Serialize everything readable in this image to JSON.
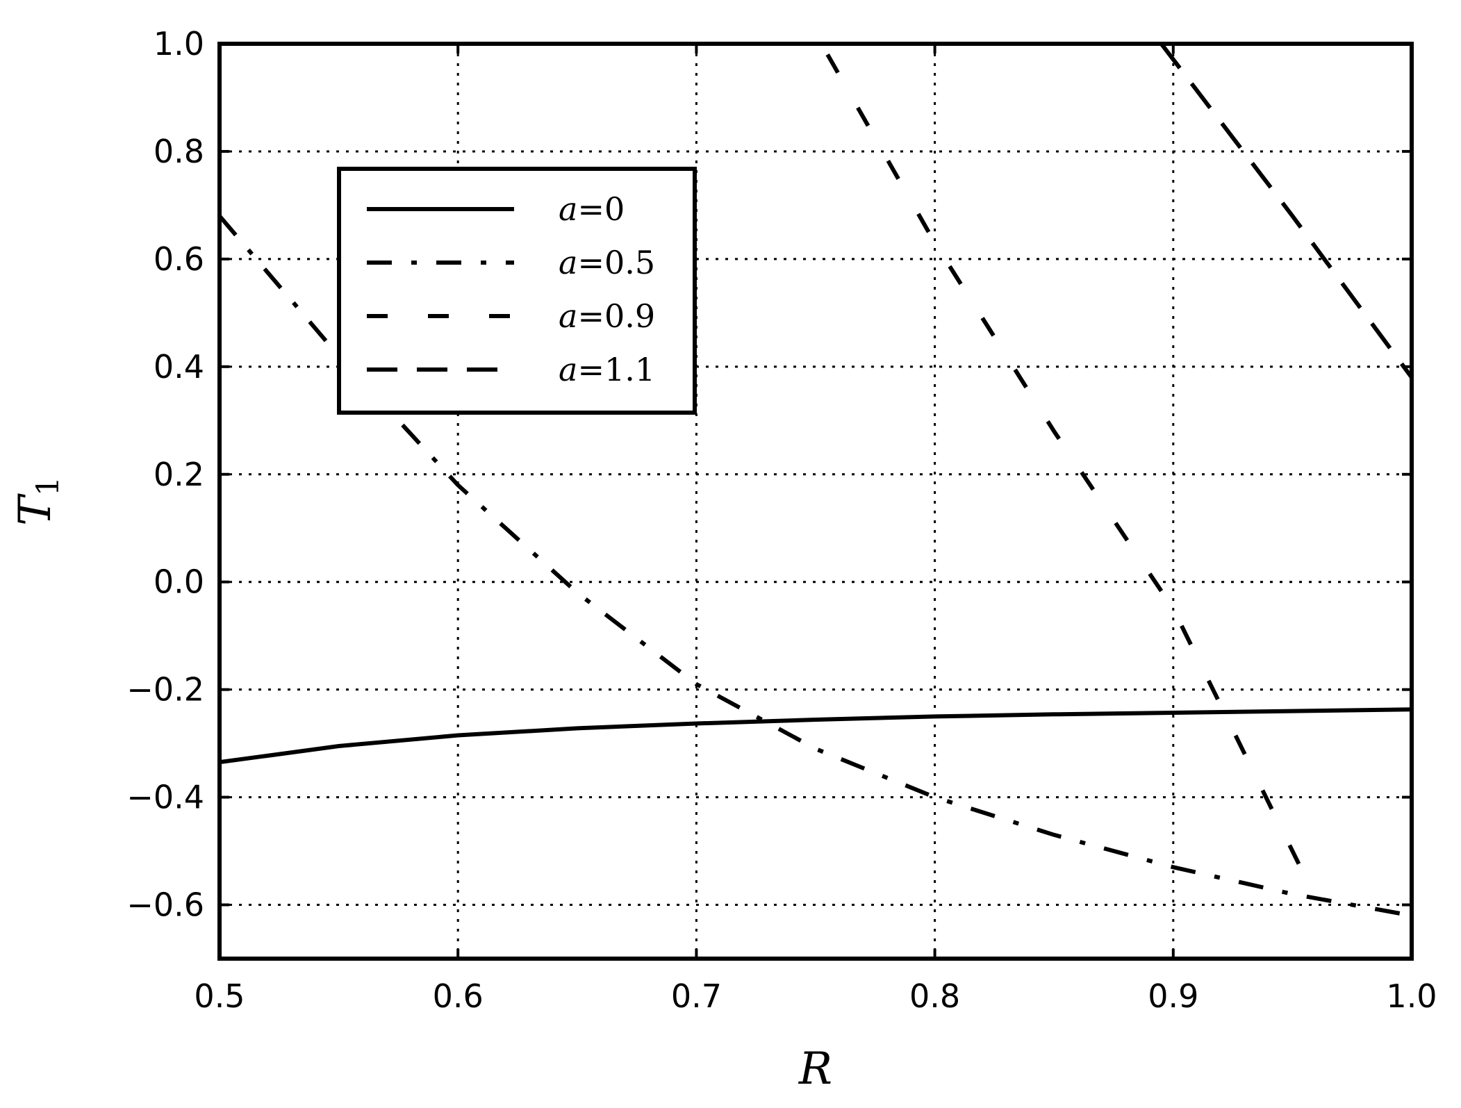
{
  "chart_data": {
    "type": "line",
    "title": "",
    "xlabel": "R",
    "ylabel": "T",
    "ylabel_subscript": "1",
    "xlim": [
      0.5,
      1.0
    ],
    "ylim": [
      -0.7,
      1.0
    ],
    "xticks": [
      0.5,
      0.6,
      0.7,
      0.8,
      0.9,
      1.0
    ],
    "xtick_labels": [
      "0.5",
      "0.6",
      "0.7",
      "0.8",
      "0.9",
      "1.0"
    ],
    "yticks": [
      -0.6,
      -0.4,
      -0.2,
      0.0,
      0.2,
      0.4,
      0.6,
      0.8,
      1.0
    ],
    "ytick_labels": [
      "−0.6",
      "−0.4",
      "−0.2",
      "0.0",
      "0.2",
      "0.4",
      "0.6",
      "0.8",
      "1.0"
    ],
    "grid": true,
    "legend_position": "upper-left",
    "series": [
      {
        "name": "a=0",
        "style": "solid",
        "x": [
          0.5,
          0.55,
          0.6,
          0.65,
          0.7,
          0.75,
          0.8,
          0.85,
          0.9,
          0.95,
          1.0
        ],
        "y": [
          -0.335,
          -0.305,
          -0.285,
          -0.272,
          -0.263,
          -0.256,
          -0.25,
          -0.246,
          -0.243,
          -0.24,
          -0.237
        ]
      },
      {
        "name": "a=0.5",
        "style": "dashdot",
        "x": [
          0.5,
          0.55,
          0.6,
          0.65,
          0.7,
          0.75,
          0.8,
          0.85,
          0.9,
          0.95,
          1.0
        ],
        "y": [
          0.68,
          0.42,
          0.18,
          -0.02,
          -0.19,
          -0.31,
          -0.4,
          -0.47,
          -0.53,
          -0.58,
          -0.62
        ]
      },
      {
        "name": "a=0.9",
        "style": "dashed-long",
        "x": [
          0.755,
          0.8,
          0.85,
          0.9,
          0.96
        ],
        "y": [
          0.98,
          0.63,
          0.28,
          -0.05,
          -0.59
        ]
      },
      {
        "name": "a=1.1",
        "style": "dashed",
        "x": [
          0.895,
          0.95,
          1.0
        ],
        "y": [
          1.0,
          0.68,
          0.38
        ]
      }
    ],
    "legend": [
      {
        "var": "a",
        "value": "0"
      },
      {
        "var": "a",
        "value": "0.5"
      },
      {
        "var": "a",
        "value": "0.9"
      },
      {
        "var": "a",
        "value": "1.1"
      }
    ],
    "colors": {
      "line": "#000000",
      "grid": "#000000",
      "background": "#ffffff"
    }
  }
}
